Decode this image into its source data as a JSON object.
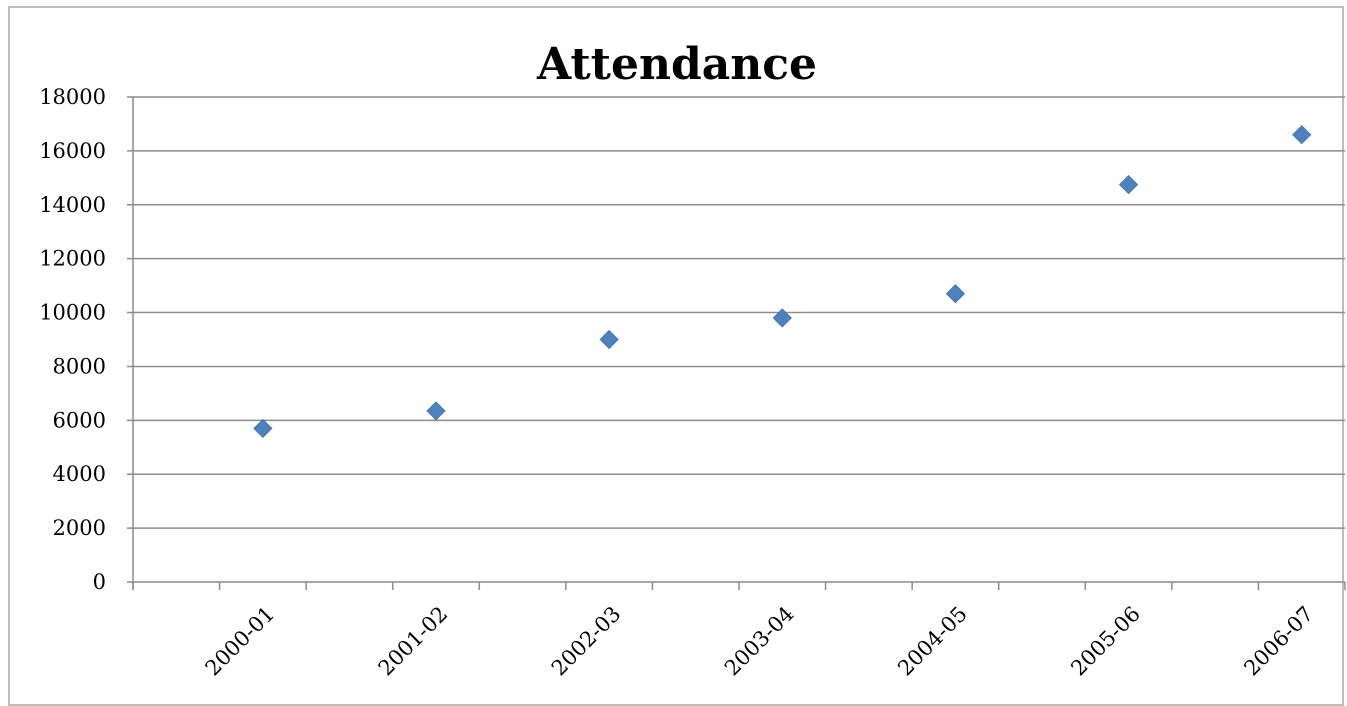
{
  "chart_data": {
    "type": "scatter",
    "title": "Attendance",
    "xlabel": "",
    "ylabel": "",
    "categories": [
      "2000-01",
      "2001-02",
      "2002-03",
      "2003-04",
      "2004-05",
      "2005-06",
      "2006-07"
    ],
    "series": [
      {
        "values": [
          5700,
          6350,
          9000,
          9800,
          10700,
          14750,
          16600
        ]
      }
    ],
    "ylim": [
      0,
      18000
    ],
    "yticks": [
      "0",
      "2000",
      "4000",
      "6000",
      "8000",
      "10000",
      "12000",
      "14000",
      "16000",
      "18000"
    ],
    "grid": true,
    "legend": "none",
    "marker": "diamond",
    "marker_color": "#4f81bd"
  }
}
